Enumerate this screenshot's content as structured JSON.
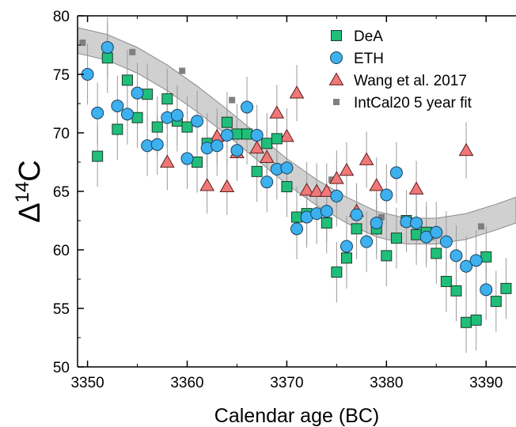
{
  "chart_data": {
    "type": "scatter",
    "title": "",
    "xlabel": "Calendar age (BC)",
    "ylabel": "Δ",
    "ylabel_sup": "14",
    "ylabel_tail": "C",
    "xlim": [
      3349,
      3393
    ],
    "ylim": [
      50,
      80
    ],
    "xticks": [
      3350,
      3360,
      3370,
      3380,
      3390
    ],
    "yticks": [
      50,
      55,
      60,
      65,
      70,
      75,
      80
    ],
    "legend_position": "top-right",
    "colors": {
      "dea": "#1fbf7a",
      "eth": "#3db0ee",
      "wang": "#f07878",
      "intcal": "#7f7f7f",
      "band": "#d0d0d0",
      "error_bar": "#9a9a9a"
    },
    "band": {
      "x": [
        3349,
        3352,
        3355,
        3358,
        3361,
        3364,
        3367,
        3370,
        3373,
        3376,
        3379,
        3382,
        3385,
        3388,
        3391,
        3393
      ],
      "lower": [
        76.8,
        76.2,
        75.1,
        73.6,
        71.8,
        69.8,
        67.7,
        65.6,
        63.8,
        62.3,
        61.1,
        60.5,
        60.5,
        60.9,
        61.7,
        62.3
      ],
      "upper": [
        79.0,
        78.4,
        77.3,
        75.8,
        74.0,
        72.0,
        69.9,
        67.8,
        66.0,
        64.5,
        63.3,
        62.7,
        62.7,
        63.1,
        63.9,
        64.5
      ]
    },
    "series": [
      {
        "name": "DeA",
        "marker": "square",
        "points": [
          [
            3351,
            68.0,
            2.6
          ],
          [
            3352,
            76.4,
            3.0
          ],
          [
            3353,
            70.3,
            2.6
          ],
          [
            3354,
            74.5,
            2.6
          ],
          [
            3355,
            71.3,
            2.6
          ],
          [
            3356,
            73.3,
            2.6
          ],
          [
            3357,
            70.5,
            2.6
          ],
          [
            3358,
            72.9,
            2.6
          ],
          [
            3359,
            71.0,
            2.6
          ],
          [
            3360,
            70.5,
            2.6
          ],
          [
            3361,
            67.5,
            2.6
          ],
          [
            3362,
            69.1,
            2.6
          ],
          [
            3364,
            70.9,
            2.6
          ],
          [
            3365,
            69.9,
            2.6
          ],
          [
            3366,
            69.9,
            2.6
          ],
          [
            3367,
            66.7,
            2.6
          ],
          [
            3368,
            69.1,
            2.6
          ],
          [
            3369,
            69.5,
            2.6
          ],
          [
            3370,
            65.4,
            2.6
          ],
          [
            3371,
            62.8,
            2.6
          ],
          [
            3372,
            63.1,
            2.6
          ],
          [
            3374,
            62.3,
            2.6
          ],
          [
            3375,
            58.1,
            2.6
          ],
          [
            3376,
            59.3,
            2.6
          ],
          [
            3377,
            61.8,
            2.6
          ],
          [
            3379,
            61.8,
            2.6
          ],
          [
            3380,
            59.5,
            2.6
          ],
          [
            3381,
            61.0,
            2.6
          ],
          [
            3382,
            62.5,
            2.6
          ],
          [
            3383,
            61.3,
            2.6
          ],
          [
            3384,
            61.5,
            2.6
          ],
          [
            3385,
            59.7,
            2.6
          ],
          [
            3386,
            57.3,
            2.6
          ],
          [
            3387,
            56.5,
            2.6
          ],
          [
            3388,
            53.8,
            2.6
          ],
          [
            3389,
            54.0,
            2.6
          ],
          [
            3390,
            59.4,
            2.6
          ],
          [
            3391,
            55.6,
            2.6
          ],
          [
            3392,
            56.7,
            2.6
          ]
        ]
      },
      {
        "name": "ETH",
        "marker": "circle",
        "points": [
          [
            3350,
            75.0,
            2.6
          ],
          [
            3351,
            71.7,
            2.6
          ],
          [
            3352,
            77.3,
            2.6
          ],
          [
            3353,
            72.3,
            2.6
          ],
          [
            3354,
            71.6,
            2.6
          ],
          [
            3355,
            73.4,
            2.6
          ],
          [
            3356,
            68.9,
            2.6
          ],
          [
            3357,
            69.0,
            2.6
          ],
          [
            3358,
            71.3,
            2.6
          ],
          [
            3359,
            71.5,
            2.6
          ],
          [
            3360,
            67.8,
            2.6
          ],
          [
            3361,
            71.0,
            2.6
          ],
          [
            3362,
            68.7,
            2.6
          ],
          [
            3363,
            68.9,
            2.6
          ],
          [
            3364,
            69.8,
            2.6
          ],
          [
            3365,
            68.5,
            2.6
          ],
          [
            3366,
            72.2,
            2.6
          ],
          [
            3367,
            69.8,
            2.6
          ],
          [
            3368,
            65.8,
            2.6
          ],
          [
            3369,
            66.9,
            2.6
          ],
          [
            3370,
            67.0,
            2.6
          ],
          [
            3371,
            61.8,
            2.6
          ],
          [
            3372,
            62.8,
            2.6
          ],
          [
            3373,
            63.1,
            2.6
          ],
          [
            3374,
            63.3,
            2.6
          ],
          [
            3375,
            64.6,
            2.6
          ],
          [
            3376,
            60.3,
            2.6
          ],
          [
            3377,
            63.0,
            2.6
          ],
          [
            3378,
            60.7,
            2.6
          ],
          [
            3379,
            62.3,
            2.6
          ],
          [
            3380,
            64.7,
            2.6
          ],
          [
            3381,
            66.6,
            2.6
          ],
          [
            3382,
            62.4,
            2.6
          ],
          [
            3383,
            62.3,
            2.6
          ],
          [
            3384,
            61.1,
            2.6
          ],
          [
            3385,
            61.5,
            2.6
          ],
          [
            3386,
            60.7,
            2.6
          ],
          [
            3387,
            59.5,
            2.6
          ],
          [
            3388,
            58.6,
            2.6
          ],
          [
            3389,
            59.1,
            2.6
          ],
          [
            3390,
            56.6,
            2.6
          ]
        ]
      },
      {
        "name": "Wang et al. 2017",
        "marker": "triangle",
        "points": [
          [
            3358,
            67.5,
            2.4
          ],
          [
            3362,
            65.5,
            2.4
          ],
          [
            3363,
            69.7,
            2.4
          ],
          [
            3364,
            65.4,
            2.4
          ],
          [
            3365,
            68.3,
            2.4
          ],
          [
            3367,
            68.7,
            2.4
          ],
          [
            3368,
            67.9,
            2.4
          ],
          [
            3369,
            71.7,
            2.4
          ],
          [
            3370,
            69.7,
            2.4
          ],
          [
            3371,
            73.4,
            2.4
          ],
          [
            3372,
            65.1,
            2.4
          ],
          [
            3373,
            65.0,
            2.4
          ],
          [
            3374,
            65.0,
            2.4
          ],
          [
            3375,
            66.1,
            2.4
          ],
          [
            3376,
            66.8,
            2.4
          ],
          [
            3377,
            63.3,
            2.4
          ],
          [
            3378,
            67.7,
            2.4
          ],
          [
            3379,
            65.5,
            2.4
          ],
          [
            3383,
            65.2,
            2.4
          ],
          [
            3388,
            68.5,
            2.4
          ]
        ]
      },
      {
        "name": "IntCal20 5 year fit",
        "marker": "small-square",
        "points": [
          [
            3349.5,
            77.7
          ],
          [
            3354.5,
            76.9
          ],
          [
            3359.5,
            75.3
          ],
          [
            3364.5,
            72.8
          ],
          [
            3369.5,
            69.5
          ],
          [
            3374.5,
            66.0
          ],
          [
            3379.5,
            62.8
          ],
          [
            3384.5,
            61.1
          ],
          [
            3389.5,
            62.0
          ]
        ]
      }
    ]
  }
}
